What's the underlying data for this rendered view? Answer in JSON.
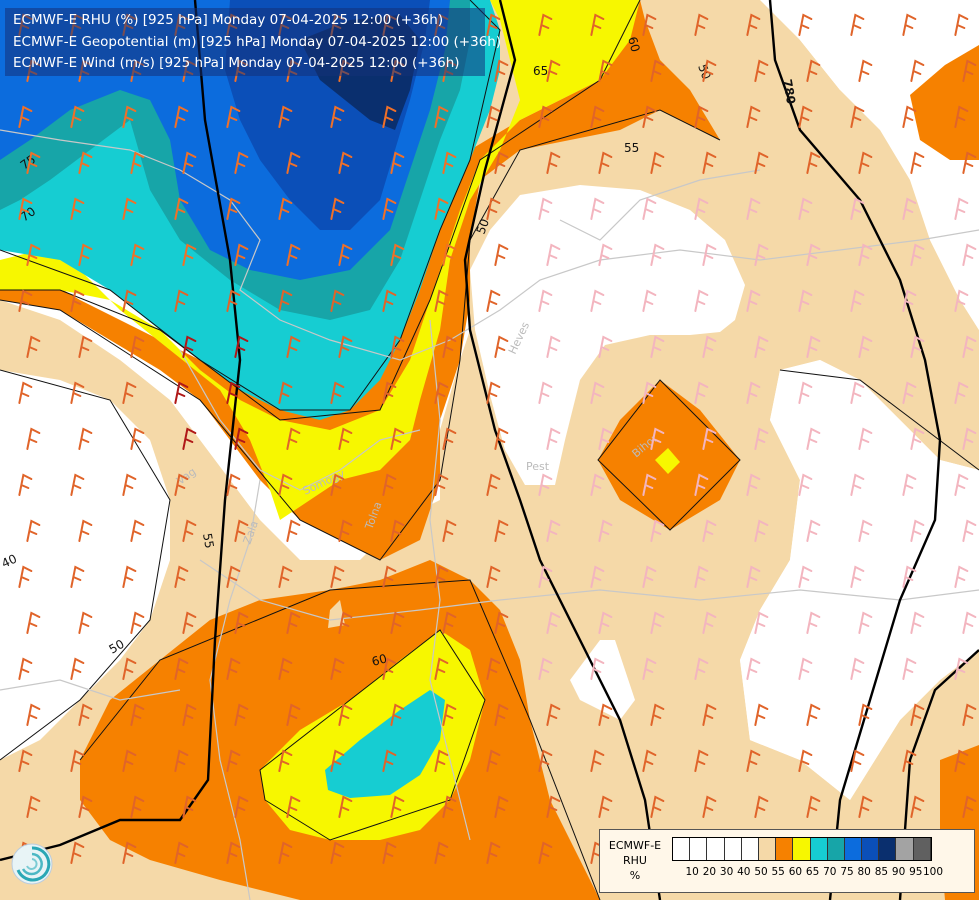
{
  "title_lines": [
    "ECMWF-E RHU (%) [925 hPa] Monday 07-04-2025 12:00 (+36h)",
    "ECMWF-E Geopotential (m) [925 hPa] Monday 07-04-2025 12:00 (+36h)",
    "ECMWF-E Wind (m/s) [925 hPa] Monday 07-04-2025 12:00 (+36h)"
  ],
  "legend": {
    "label_line1": "ECMWF-E",
    "label_line2": "RHU",
    "label_line3": "%",
    "ticks": [
      "10",
      "20",
      "30",
      "40",
      "50",
      "55",
      "60",
      "65",
      "70",
      "75",
      "80",
      "85",
      "90",
      "95",
      "100"
    ],
    "colors": [
      "#ffffff",
      "#ffffff",
      "#ffffff",
      "#ffffff",
      "#ffffff",
      "#f5d9a8",
      "#f68100",
      "#f7f700",
      "#16cdd2",
      "#17a5a8",
      "#0c6cdd",
      "#0b4fb8",
      "#0a2f6e",
      "#a3a3a3",
      "#606060"
    ]
  },
  "geopotential_labels": [
    "780"
  ],
  "rhu_contour_labels": [
    "50",
    "55",
    "60",
    "65",
    "70",
    "75",
    "40",
    "50",
    "55",
    "60",
    "50"
  ],
  "place_labels": [
    "Vag",
    "Zala",
    "Somogy",
    "Tolna",
    "Heves",
    "Pest",
    "Bihor"
  ],
  "icons": {
    "logo": "ecmwf-swirl-logo-icon"
  }
}
